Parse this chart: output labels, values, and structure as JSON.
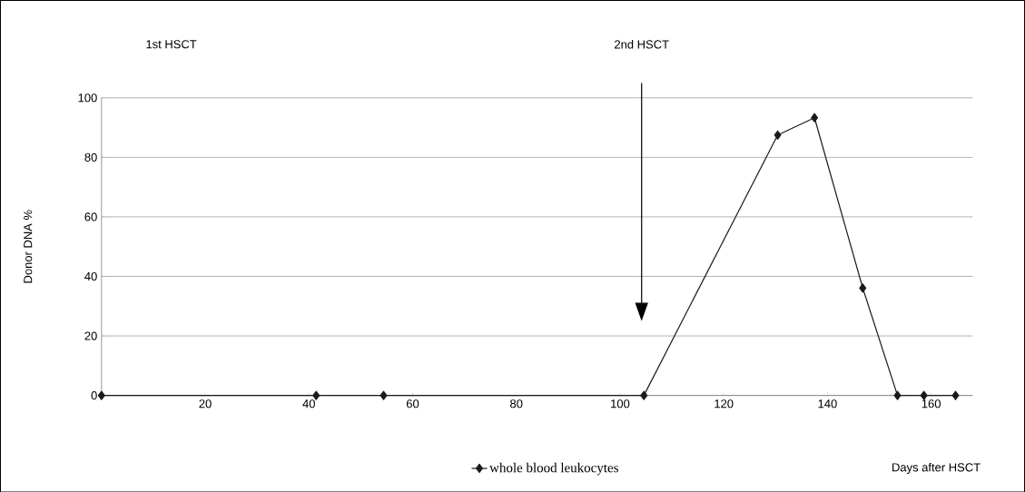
{
  "chart_data": {
    "type": "line",
    "xlabel": "Days after HSCT",
    "ylabel": "Donor DNA %",
    "x": [
      0,
      41.4,
      54.4,
      104.6,
      130.4,
      137.5,
      146.8,
      153.5,
      158.6,
      164.7
    ],
    "series": [
      {
        "name": "whole blood leukocytes",
        "color": "#1a1a1a",
        "values": [
          0,
          0,
          0,
          0,
          87.5,
          93.3,
          36.1,
          0,
          0,
          0
        ]
      }
    ],
    "xlim": [
      0,
      168
    ],
    "ylim": [
      0,
      100
    ],
    "xticks": [
      20,
      40,
      60,
      80,
      100,
      120,
      140,
      160
    ],
    "yticks": [
      0,
      20,
      40,
      60,
      80,
      100
    ],
    "annotations": [
      "1st HSCT",
      "2nd HSCT"
    ],
    "grid": "y",
    "legend": "bottom",
    "marker": "diamond",
    "line_style": "solid"
  }
}
